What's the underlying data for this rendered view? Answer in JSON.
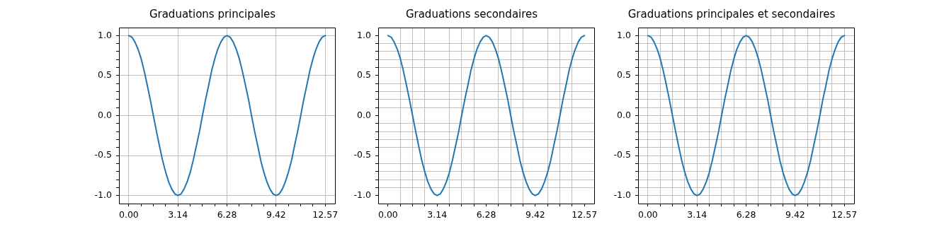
{
  "chart_data": [
    {
      "type": "line",
      "title": "Graduations principales",
      "x": [
        0,
        0.2,
        0.39,
        0.59,
        0.79,
        0.98,
        1.18,
        1.37,
        1.57,
        1.77,
        1.96,
        2.16,
        2.36,
        2.55,
        2.75,
        2.95,
        3.14,
        3.34,
        3.53,
        3.73,
        3.93,
        4.12,
        4.32,
        4.52,
        4.71,
        4.91,
        5.11,
        5.3,
        5.5,
        5.69,
        5.89,
        6.09,
        6.28,
        6.48,
        6.68,
        6.87,
        7.07,
        7.26,
        7.46,
        7.66,
        7.85,
        8.05,
        8.25,
        8.44,
        8.64,
        8.84,
        9.03,
        9.23,
        9.42,
        9.62,
        9.82,
        10.01,
        10.21,
        10.41,
        10.6,
        10.8,
        11,
        11.19,
        11.39,
        11.58,
        11.78,
        11.98,
        12.17,
        12.37,
        12.57
      ],
      "values": [
        1,
        0.98,
        0.92,
        0.83,
        0.71,
        0.56,
        0.38,
        0.2,
        0,
        -0.2,
        -0.38,
        -0.56,
        -0.71,
        -0.83,
        -0.92,
        -0.98,
        -1,
        -0.98,
        -0.92,
        -0.83,
        -0.71,
        -0.56,
        -0.38,
        -0.2,
        0,
        0.2,
        0.38,
        0.56,
        0.71,
        0.83,
        0.92,
        0.98,
        1,
        0.98,
        0.92,
        0.83,
        0.71,
        0.56,
        0.38,
        0.2,
        0,
        -0.2,
        -0.38,
        -0.56,
        -0.71,
        -0.83,
        -0.92,
        -0.98,
        -1,
        -0.98,
        -0.92,
        -0.83,
        -0.71,
        -0.56,
        -0.38,
        -0.2,
        0,
        0.2,
        0.38,
        0.56,
        0.71,
        0.83,
        0.92,
        0.98,
        1
      ],
      "color": "#1f77b4",
      "xlim": [
        -0.63,
        13.19
      ],
      "ylim": [
        -1.1,
        1.1
      ],
      "xticks": [
        {
          "value": 0,
          "label": "0.00"
        },
        {
          "value": 0.7854,
          "label": null
        },
        {
          "value": 1.5708,
          "label": null
        },
        {
          "value": 2.3562,
          "label": null
        },
        {
          "value": 3.1416,
          "label": "3.14"
        },
        {
          "value": 3.927,
          "label": null
        },
        {
          "value": 4.7124,
          "label": null
        },
        {
          "value": 5.4978,
          "label": null
        },
        {
          "value": 6.2832,
          "label": "6.28"
        },
        {
          "value": 7.0686,
          "label": null
        },
        {
          "value": 7.854,
          "label": null
        },
        {
          "value": 8.6394,
          "label": null
        },
        {
          "value": 9.4248,
          "label": "9.42"
        },
        {
          "value": 10.2102,
          "label": null
        },
        {
          "value": 10.9956,
          "label": null
        },
        {
          "value": 11.781,
          "label": null
        },
        {
          "value": 12.5664,
          "label": "12.57"
        }
      ],
      "yticks": [
        {
          "value": -1,
          "label": "-1.0"
        },
        {
          "value": -0.9,
          "label": null
        },
        {
          "value": -0.8,
          "label": null
        },
        {
          "value": -0.7,
          "label": null
        },
        {
          "value": -0.6,
          "label": null
        },
        {
          "value": -0.5,
          "label": "-0.5"
        },
        {
          "value": -0.4,
          "label": null
        },
        {
          "value": -0.3,
          "label": null
        },
        {
          "value": -0.2,
          "label": null
        },
        {
          "value": -0.1,
          "label": null
        },
        {
          "value": 0,
          "label": "0.0"
        },
        {
          "value": 0.1,
          "label": null
        },
        {
          "value": 0.2,
          "label": null
        },
        {
          "value": 0.3,
          "label": null
        },
        {
          "value": 0.4,
          "label": null
        },
        {
          "value": 0.5,
          "label": "0.5"
        },
        {
          "value": 0.6,
          "label": null
        },
        {
          "value": 0.7,
          "label": null
        },
        {
          "value": 0.8,
          "label": null
        },
        {
          "value": 0.9,
          "label": null
        },
        {
          "value": 1,
          "label": "1.0"
        }
      ],
      "grid": "major"
    },
    {
      "type": "line",
      "title": "Graduations secondaires",
      "x": [
        0,
        0.2,
        0.39,
        0.59,
        0.79,
        0.98,
        1.18,
        1.37,
        1.57,
        1.77,
        1.96,
        2.16,
        2.36,
        2.55,
        2.75,
        2.95,
        3.14,
        3.34,
        3.53,
        3.73,
        3.93,
        4.12,
        4.32,
        4.52,
        4.71,
        4.91,
        5.11,
        5.3,
        5.5,
        5.69,
        5.89,
        6.09,
        6.28,
        6.48,
        6.68,
        6.87,
        7.07,
        7.26,
        7.46,
        7.66,
        7.85,
        8.05,
        8.25,
        8.44,
        8.64,
        8.84,
        9.03,
        9.23,
        9.42,
        9.62,
        9.82,
        10.01,
        10.21,
        10.41,
        10.6,
        10.8,
        11,
        11.19,
        11.39,
        11.58,
        11.78,
        11.98,
        12.17,
        12.37,
        12.57
      ],
      "values": [
        1,
        0.98,
        0.92,
        0.83,
        0.71,
        0.56,
        0.38,
        0.2,
        0,
        -0.2,
        -0.38,
        -0.56,
        -0.71,
        -0.83,
        -0.92,
        -0.98,
        -1,
        -0.98,
        -0.92,
        -0.83,
        -0.71,
        -0.56,
        -0.38,
        -0.2,
        0,
        0.2,
        0.38,
        0.56,
        0.71,
        0.83,
        0.92,
        0.98,
        1,
        0.98,
        0.92,
        0.83,
        0.71,
        0.56,
        0.38,
        0.2,
        0,
        -0.2,
        -0.38,
        -0.56,
        -0.71,
        -0.83,
        -0.92,
        -0.98,
        -1,
        -0.98,
        -0.92,
        -0.83,
        -0.71,
        -0.56,
        -0.38,
        -0.2,
        0,
        0.2,
        0.38,
        0.56,
        0.71,
        0.83,
        0.92,
        0.98,
        1
      ],
      "color": "#1f77b4",
      "xlim": [
        -0.63,
        13.19
      ],
      "ylim": [
        -1.1,
        1.1
      ],
      "xticks": [
        {
          "value": 0,
          "label": "0.00"
        },
        {
          "value": 0.7854,
          "label": null
        },
        {
          "value": 1.5708,
          "label": null
        },
        {
          "value": 2.3562,
          "label": null
        },
        {
          "value": 3.1416,
          "label": "3.14"
        },
        {
          "value": 3.927,
          "label": null
        },
        {
          "value": 4.7124,
          "label": null
        },
        {
          "value": 5.4978,
          "label": null
        },
        {
          "value": 6.2832,
          "label": "6.28"
        },
        {
          "value": 7.0686,
          "label": null
        },
        {
          "value": 7.854,
          "label": null
        },
        {
          "value": 8.6394,
          "label": null
        },
        {
          "value": 9.4248,
          "label": "9.42"
        },
        {
          "value": 10.2102,
          "label": null
        },
        {
          "value": 10.9956,
          "label": null
        },
        {
          "value": 11.781,
          "label": null
        },
        {
          "value": 12.5664,
          "label": "12.57"
        }
      ],
      "yticks": [
        {
          "value": -1,
          "label": "-1.0"
        },
        {
          "value": -0.9,
          "label": null
        },
        {
          "value": -0.8,
          "label": null
        },
        {
          "value": -0.7,
          "label": null
        },
        {
          "value": -0.6,
          "label": null
        },
        {
          "value": -0.5,
          "label": "-0.5"
        },
        {
          "value": -0.4,
          "label": null
        },
        {
          "value": -0.3,
          "label": null
        },
        {
          "value": -0.2,
          "label": null
        },
        {
          "value": -0.1,
          "label": null
        },
        {
          "value": 0,
          "label": "0.0"
        },
        {
          "value": 0.1,
          "label": null
        },
        {
          "value": 0.2,
          "label": null
        },
        {
          "value": 0.3,
          "label": null
        },
        {
          "value": 0.4,
          "label": null
        },
        {
          "value": 0.5,
          "label": "0.5"
        },
        {
          "value": 0.6,
          "label": null
        },
        {
          "value": 0.7,
          "label": null
        },
        {
          "value": 0.8,
          "label": null
        },
        {
          "value": 0.9,
          "label": null
        },
        {
          "value": 1,
          "label": "1.0"
        }
      ],
      "grid": "minor"
    },
    {
      "type": "line",
      "title": "Graduations principales et secondaires",
      "x": [
        0,
        0.2,
        0.39,
        0.59,
        0.79,
        0.98,
        1.18,
        1.37,
        1.57,
        1.77,
        1.96,
        2.16,
        2.36,
        2.55,
        2.75,
        2.95,
        3.14,
        3.34,
        3.53,
        3.73,
        3.93,
        4.12,
        4.32,
        4.52,
        4.71,
        4.91,
        5.11,
        5.3,
        5.5,
        5.69,
        5.89,
        6.09,
        6.28,
        6.48,
        6.68,
        6.87,
        7.07,
        7.26,
        7.46,
        7.66,
        7.85,
        8.05,
        8.25,
        8.44,
        8.64,
        8.84,
        9.03,
        9.23,
        9.42,
        9.62,
        9.82,
        10.01,
        10.21,
        10.41,
        10.6,
        10.8,
        11,
        11.19,
        11.39,
        11.58,
        11.78,
        11.98,
        12.17,
        12.37,
        12.57
      ],
      "values": [
        1,
        0.98,
        0.92,
        0.83,
        0.71,
        0.56,
        0.38,
        0.2,
        0,
        -0.2,
        -0.38,
        -0.56,
        -0.71,
        -0.83,
        -0.92,
        -0.98,
        -1,
        -0.98,
        -0.92,
        -0.83,
        -0.71,
        -0.56,
        -0.38,
        -0.2,
        0,
        0.2,
        0.38,
        0.56,
        0.71,
        0.83,
        0.92,
        0.98,
        1,
        0.98,
        0.92,
        0.83,
        0.71,
        0.56,
        0.38,
        0.2,
        0,
        -0.2,
        -0.38,
        -0.56,
        -0.71,
        -0.83,
        -0.92,
        -0.98,
        -1,
        -0.98,
        -0.92,
        -0.83,
        -0.71,
        -0.56,
        -0.38,
        -0.2,
        0,
        0.2,
        0.38,
        0.56,
        0.71,
        0.83,
        0.92,
        0.98,
        1
      ],
      "color": "#1f77b4",
      "xlim": [
        -0.63,
        13.19
      ],
      "ylim": [
        -1.1,
        1.1
      ],
      "xticks": [
        {
          "value": 0,
          "label": "0.00"
        },
        {
          "value": 0.7854,
          "label": null
        },
        {
          "value": 1.5708,
          "label": null
        },
        {
          "value": 2.3562,
          "label": null
        },
        {
          "value": 3.1416,
          "label": "3.14"
        },
        {
          "value": 3.927,
          "label": null
        },
        {
          "value": 4.7124,
          "label": null
        },
        {
          "value": 5.4978,
          "label": null
        },
        {
          "value": 6.2832,
          "label": "6.28"
        },
        {
          "value": 7.0686,
          "label": null
        },
        {
          "value": 7.854,
          "label": null
        },
        {
          "value": 8.6394,
          "label": null
        },
        {
          "value": 9.4248,
          "label": "9.42"
        },
        {
          "value": 10.2102,
          "label": null
        },
        {
          "value": 10.9956,
          "label": null
        },
        {
          "value": 11.781,
          "label": null
        },
        {
          "value": 12.5664,
          "label": "12.57"
        }
      ],
      "yticks": [
        {
          "value": -1,
          "label": "-1.0"
        },
        {
          "value": -0.9,
          "label": null
        },
        {
          "value": -0.8,
          "label": null
        },
        {
          "value": -0.7,
          "label": null
        },
        {
          "value": -0.6,
          "label": null
        },
        {
          "value": -0.5,
          "label": "-0.5"
        },
        {
          "value": -0.4,
          "label": null
        },
        {
          "value": -0.3,
          "label": null
        },
        {
          "value": -0.2,
          "label": null
        },
        {
          "value": -0.1,
          "label": null
        },
        {
          "value": 0,
          "label": "0.0"
        },
        {
          "value": 0.1,
          "label": null
        },
        {
          "value": 0.2,
          "label": null
        },
        {
          "value": 0.3,
          "label": null
        },
        {
          "value": 0.4,
          "label": null
        },
        {
          "value": 0.5,
          "label": "0.5"
        },
        {
          "value": 0.6,
          "label": null
        },
        {
          "value": 0.7,
          "label": null
        },
        {
          "value": 0.8,
          "label": null
        },
        {
          "value": 0.9,
          "label": null
        },
        {
          "value": 1,
          "label": "1.0"
        }
      ],
      "grid": true
    }
  ]
}
